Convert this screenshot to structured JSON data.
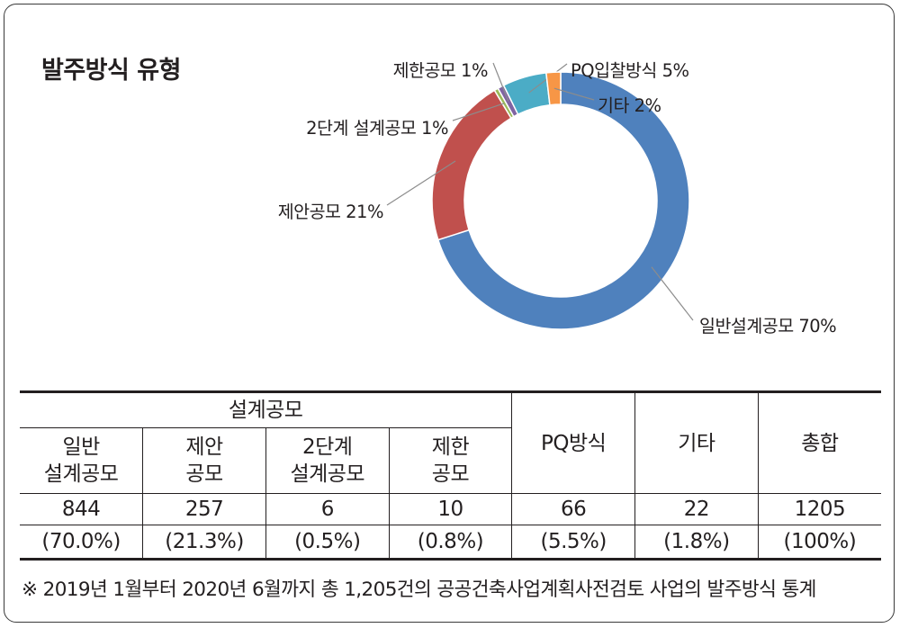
{
  "title": "발주방식 유형",
  "chart_data": {
    "type": "pie",
    "variant": "donut",
    "slices": [
      {
        "label": "일반설계공모 70%",
        "value": 70.0,
        "color": "#4f81bd"
      },
      {
        "label": "제안공모 21%",
        "value": 21.3,
        "color": "#c0504d"
      },
      {
        "label": "2단계 설계공모 1%",
        "value": 0.5,
        "color": "#9bbb59"
      },
      {
        "label": "제한공모 1%",
        "value": 0.8,
        "color": "#8064a2"
      },
      {
        "label": "PQ입찰방식 5%",
        "value": 5.5,
        "color": "#4bacc6"
      },
      {
        "label": "기타 2%",
        "value": 1.8,
        "color": "#f79646"
      }
    ]
  },
  "table": {
    "group_header": "설계공모",
    "headers": [
      "일반\n설계공모",
      "제안\n공모",
      "2단계\n설계공모",
      "제한\n공모",
      "PQ방식",
      "기타",
      "총합"
    ],
    "counts": [
      "844",
      "257",
      "6",
      "10",
      "66",
      "22",
      "1205"
    ],
    "percents": [
      "(70.0%)",
      "(21.3%)",
      "(0.5%)",
      "(0.8%)",
      "(5.5%)",
      "(1.8%)",
      "(100%)"
    ]
  },
  "note": "※ 2019년 1월부터 2020년 6월까지 총 1,205건의 공공건축사업계획사전검토 사업의 발주방식 통계"
}
